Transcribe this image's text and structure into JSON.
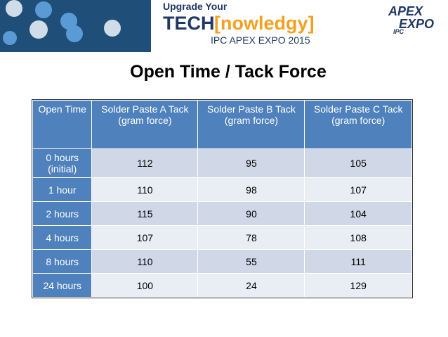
{
  "header": {
    "tagline": "Upgrade Your",
    "brand_left": "TECH",
    "brand_right": "[nowledgy]",
    "event": "IPC APEX EXPO 2015",
    "logo_top": "APEX",
    "logo_bottom": "EXPO",
    "logo_badge": "IPC"
  },
  "title": "Open Time / Tack Force",
  "table": {
    "columns": [
      "Open Time",
      "Solder Paste A Tack (gram force)",
      "Solder Paste B Tack (gram force)",
      "Solder Paste C Tack (gram force)"
    ],
    "rows": [
      [
        "0 hours (initial)",
        112,
        95,
        105
      ],
      [
        "1 hour",
        110,
        98,
        107
      ],
      [
        "2 hours",
        115,
        90,
        104
      ],
      [
        "4 hours",
        107,
        78,
        108
      ],
      [
        "8 hours",
        110,
        55,
        111
      ],
      [
        "24 hours",
        100,
        24,
        129
      ]
    ]
  }
}
